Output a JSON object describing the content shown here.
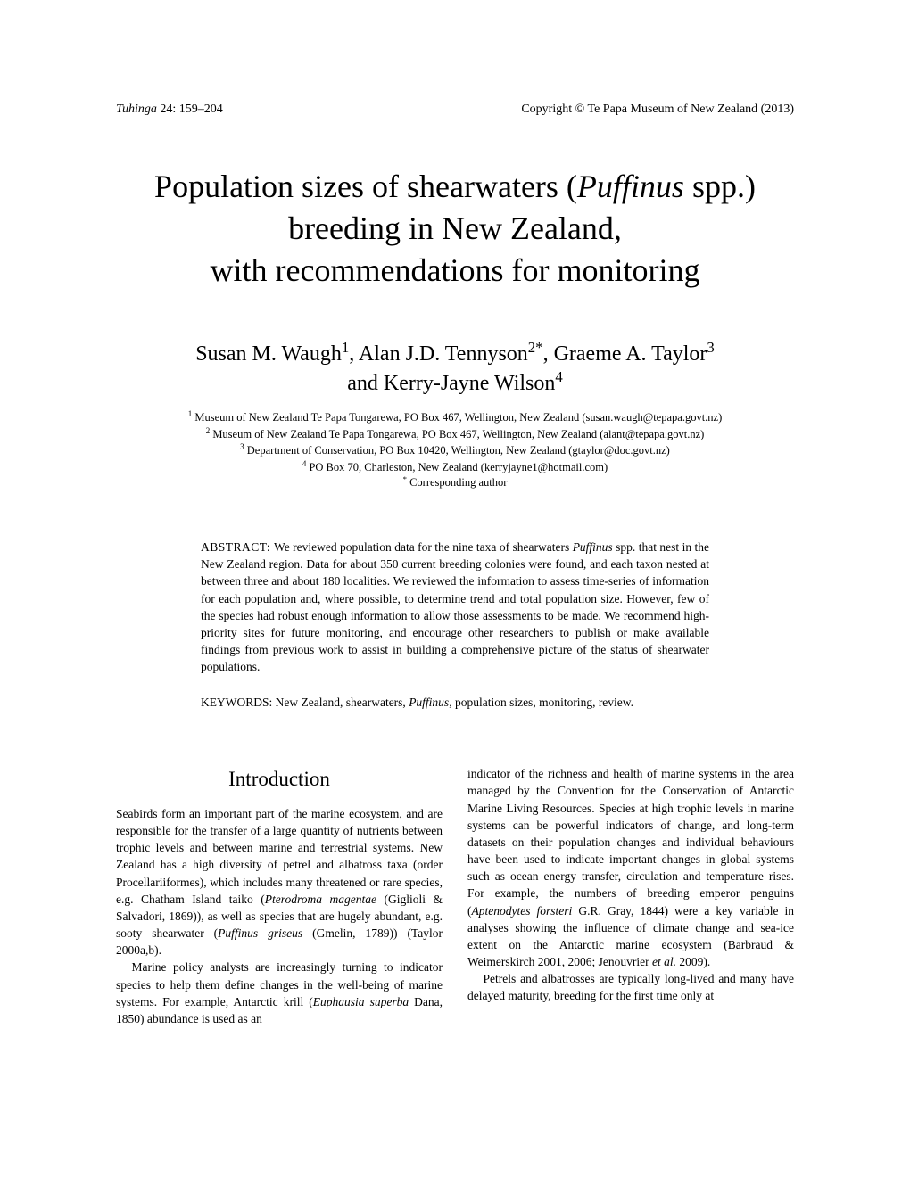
{
  "header": {
    "left_journal": "Tuhinga",
    "left_ref": " 24: 159–204",
    "right": "Copyright © Te Papa Museum of New Zealand (2013)"
  },
  "title": {
    "line1_pre": "Population sizes of shearwaters (",
    "line1_genus": "Puffinus",
    "line1_post": " spp.)",
    "line2": "breeding in New Zealand,",
    "line3": "with recommendations for monitoring"
  },
  "authors": {
    "line1_a": "Susan M. Waugh",
    "sup1": "1",
    "line1_b": ", Alan J.D. Tennyson",
    "sup2": "2*",
    "line1_c": ", Graeme A. Taylor",
    "sup3": "3",
    "line2_a": "and Kerry-Jayne Wilson",
    "sup4": "4"
  },
  "affiliations": {
    "a1_sup": "1",
    "a1": "Museum of New Zealand Te Papa Tongarewa, PO Box 467, Wellington, New Zealand (susan.waugh@tepapa.govt.nz)",
    "a2_sup": "2",
    "a2": "Museum of New Zealand Te Papa Tongarewa, PO Box 467, Wellington, New Zealand (alant@tepapa.govt.nz)",
    "a3_sup": "3",
    "a3": "Department of Conservation, PO Box 10420, Wellington, New Zealand (gtaylor@doc.govt.nz)",
    "a4_sup": "4",
    "a4": "PO Box 70, Charleston, New Zealand (kerryjayne1@hotmail.com)",
    "corr_sup": "*",
    "corr": "Corresponding author"
  },
  "abstract": {
    "label": "ABSTRACT: ",
    "text_pre": "We reviewed population data for the nine taxa of shearwaters ",
    "genus": "Puffinus",
    "text_post": " spp. that nest in the New Zealand region. Data for about 350 current breeding colonies were found, and each taxon nested at between three and about 180 localities. We reviewed the information to assess time-series of information for each population and, where possible, to determine trend and total population size. However, few of the species had robust enough information to allow those assessments to be made. We recommend high-priority sites for future monitoring, and encourage other researchers to publish or make available findings from previous work to assist in building a comprehensive picture of the status of shearwater populations."
  },
  "keywords": {
    "label": "KEYWORDS: ",
    "pre": "New Zealand, shearwaters, ",
    "genus": "Puffinus",
    "post": ", population sizes, monitoring, review."
  },
  "intro_heading": "Introduction",
  "col_left": {
    "p1_a": "Seabirds form an important part of the marine ecosystem, and are responsible for the transfer of a large quantity of nutrients between trophic levels and between marine and terrestrial systems. New Zealand has a high diversity of petrel and albatross taxa (order Procellariiformes), which includes many threatened or rare species, e.g. Chatham Island taiko (",
    "p1_sp1": "Pterodroma magentae",
    "p1_b": " (Giglioli & Salvadori, 1869)), as well as species that are hugely abundant, e.g. sooty shearwater (",
    "p1_sp2": "Puffinus griseus",
    "p1_c": " (Gmelin, 1789)) (Taylor 2000a,b).",
    "p2_a": "Marine policy analysts are increasingly turning to indicator species to help them define changes in the well-being of marine systems. For example, Antarctic krill (",
    "p2_sp1": "Euphausia superba",
    "p2_b": " Dana, 1850) abundance is used as an"
  },
  "col_right": {
    "p1_a": "indicator of the richness and health of marine systems in the area managed by the Convention for the Conservation of Antarctic Marine Living Resources. Species at high trophic levels in marine systems can be powerful indicators of change, and long-term datasets on their population changes and individual behaviours have been used to indicate important changes in global systems such as ocean energy transfer, circulation and temperature rises. For example, the numbers of breeding emperor penguins (",
    "p1_sp1": "Aptenodytes forsteri",
    "p1_b": " G.R. Gray, 1844) were a key variable in analyses showing the influence of climate change and sea-ice extent on the Antarctic marine ecosystem (Barbraud & Weimerskirch 2001, 2006; Jenouvrier ",
    "p1_etal": "et al.",
    "p1_c": " 2009).",
    "p2": "Petrels and albatrosses are typically long-lived and many have delayed maturity, breeding for the first time only at"
  }
}
